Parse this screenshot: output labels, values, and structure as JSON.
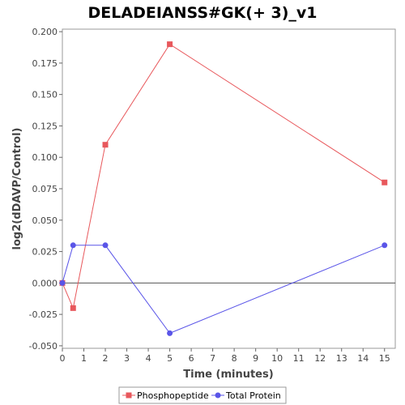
{
  "chart_data": {
    "type": "line",
    "title": "DELADEIANSS#GK(+ 3)_v1",
    "xlabel": "Time (minutes)",
    "ylabel": "log2(dDAVP/Control)",
    "xlim": [
      0,
      15.5
    ],
    "ylim": [
      -0.052,
      0.202
    ],
    "xticks": [
      0,
      1,
      2,
      3,
      4,
      5,
      6,
      7,
      8,
      9,
      10,
      11,
      12,
      13,
      14,
      15
    ],
    "xtick_labels": [
      "0",
      "1",
      "2",
      "3",
      "4",
      "5",
      "6",
      "7",
      "8",
      "9",
      "10",
      "11",
      "12",
      "13",
      "14",
      "15"
    ],
    "yticks": [
      -0.05,
      -0.025,
      0,
      0.025,
      0.05,
      0.075,
      0.1,
      0.125,
      0.15,
      0.175,
      0.2
    ],
    "ytick_labels": [
      "-0.050",
      "-0.025",
      "0.000",
      "0.025",
      "0.050",
      "0.075",
      "0.100",
      "0.125",
      "0.150",
      "0.175",
      "0.200"
    ],
    "grid": false,
    "zero_line": true,
    "legend_position": "bottom",
    "series": [
      {
        "name": "Phosphopeptide",
        "color": "#e8585c",
        "marker": "square",
        "x": [
          0,
          0.5,
          2,
          5,
          15
        ],
        "y": [
          0.0,
          -0.02,
          0.11,
          0.19,
          0.08
        ]
      },
      {
        "name": "Total Protein",
        "color": "#5a55e8",
        "marker": "circle",
        "x": [
          0,
          0.5,
          2,
          5,
          15
        ],
        "y": [
          0.0,
          0.03,
          0.03,
          -0.04,
          0.03
        ]
      }
    ]
  }
}
